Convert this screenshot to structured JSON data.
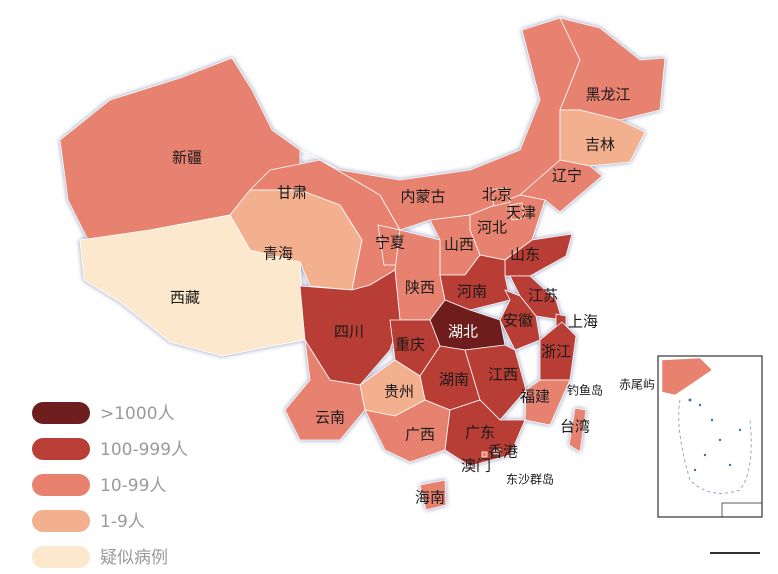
{
  "map": {
    "provinces": [
      {
        "name": "新疆",
        "level": 2
      },
      {
        "name": "西藏",
        "level": 4
      },
      {
        "name": "青海",
        "level": 3
      },
      {
        "name": "甘肃",
        "level": 2
      },
      {
        "name": "内蒙古",
        "level": 2
      },
      {
        "name": "黑龙江",
        "level": 2
      },
      {
        "name": "吉林",
        "level": 3
      },
      {
        "name": "辽宁",
        "level": 2
      },
      {
        "name": "河北",
        "level": 2
      },
      {
        "name": "北京",
        "level": 2
      },
      {
        "name": "天津",
        "level": 2
      },
      {
        "name": "山西",
        "level": 2
      },
      {
        "name": "宁夏",
        "level": 2
      },
      {
        "name": "陕西",
        "level": 2
      },
      {
        "name": "山东",
        "level": 1
      },
      {
        "name": "河南",
        "level": 1
      },
      {
        "name": "江苏",
        "level": 1
      },
      {
        "name": "安徽",
        "level": 1
      },
      {
        "name": "上海",
        "level": 1
      },
      {
        "name": "湖北",
        "level": 0
      },
      {
        "name": "四川",
        "level": 1
      },
      {
        "name": "重庆",
        "level": 1
      },
      {
        "name": "浙江",
        "level": 1
      },
      {
        "name": "湖南",
        "level": 1
      },
      {
        "name": "江西",
        "level": 1
      },
      {
        "name": "福建",
        "level": 2
      },
      {
        "name": "贵州",
        "level": 3
      },
      {
        "name": "云南",
        "level": 2
      },
      {
        "name": "广西",
        "level": 2
      },
      {
        "name": "广东",
        "level": 1
      },
      {
        "name": "海南",
        "level": 2
      },
      {
        "name": "台湾",
        "level": 2
      },
      {
        "name": "香港",
        "level": 2
      },
      {
        "name": "澳门",
        "level": 2
      }
    ],
    "islands": [
      "钓鱼岛",
      "赤尾屿",
      "东沙群岛",
      "南海诸岛"
    ]
  },
  "legend": {
    "items": [
      {
        "label": ">1000人",
        "color": "#6e1e1e"
      },
      {
        "label": "100-999人",
        "color": "#b83e36"
      },
      {
        "label": "10-99人",
        "color": "#e8826f"
      },
      {
        "label": "1-9人",
        "color": "#f2b08f"
      },
      {
        "label": "疑似病例",
        "color": "#fce8cc"
      }
    ]
  }
}
